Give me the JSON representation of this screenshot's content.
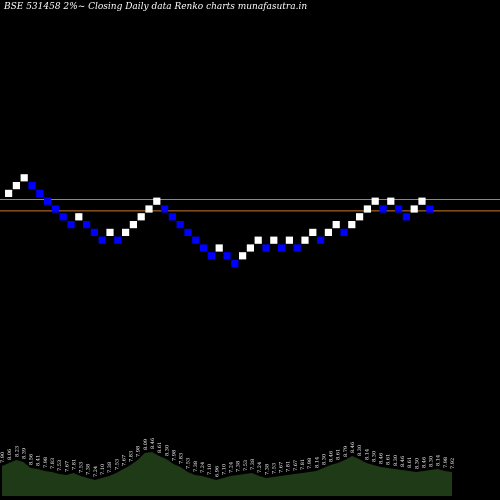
{
  "chart_data": {
    "type": "renko",
    "title": "BSE 531458  2%~  Closing Daily data  Renko  charts munafasutra.in",
    "colors": {
      "background": "#000000",
      "up_brick": "#ffffff",
      "down_brick": "#0000ff",
      "level_line": "#cc7a29",
      "volume_fill": "#1e3a17",
      "volume_label": "#ffffff"
    },
    "levels": [
      15,
      14
    ],
    "bricks": [
      {
        "level": 16,
        "dir": "up"
      },
      {
        "level": 17,
        "dir": "up"
      },
      {
        "level": 18,
        "dir": "up"
      },
      {
        "level": 17,
        "dir": "down"
      },
      {
        "level": 16,
        "dir": "down"
      },
      {
        "level": 15,
        "dir": "down"
      },
      {
        "level": 14,
        "dir": "down"
      },
      {
        "level": 13,
        "dir": "down"
      },
      {
        "level": 12,
        "dir": "down"
      },
      {
        "level": 13,
        "dir": "up"
      },
      {
        "level": 12,
        "dir": "down"
      },
      {
        "level": 11,
        "dir": "down"
      },
      {
        "level": 10,
        "dir": "down"
      },
      {
        "level": 11,
        "dir": "up"
      },
      {
        "level": 10,
        "dir": "down"
      },
      {
        "level": 11,
        "dir": "up"
      },
      {
        "level": 12,
        "dir": "up"
      },
      {
        "level": 13,
        "dir": "up"
      },
      {
        "level": 14,
        "dir": "up"
      },
      {
        "level": 15,
        "dir": "up"
      },
      {
        "level": 14,
        "dir": "down"
      },
      {
        "level": 13,
        "dir": "down"
      },
      {
        "level": 12,
        "dir": "down"
      },
      {
        "level": 11,
        "dir": "down"
      },
      {
        "level": 10,
        "dir": "down"
      },
      {
        "level": 9,
        "dir": "down"
      },
      {
        "level": 8,
        "dir": "down"
      },
      {
        "level": 9,
        "dir": "up"
      },
      {
        "level": 8,
        "dir": "down"
      },
      {
        "level": 7,
        "dir": "down"
      },
      {
        "level": 8,
        "dir": "up"
      },
      {
        "level": 9,
        "dir": "up"
      },
      {
        "level": 10,
        "dir": "up"
      },
      {
        "level": 9,
        "dir": "down"
      },
      {
        "level": 10,
        "dir": "up"
      },
      {
        "level": 9,
        "dir": "down"
      },
      {
        "level": 10,
        "dir": "up"
      },
      {
        "level": 9,
        "dir": "down"
      },
      {
        "level": 10,
        "dir": "up"
      },
      {
        "level": 11,
        "dir": "up"
      },
      {
        "level": 10,
        "dir": "down"
      },
      {
        "level": 11,
        "dir": "up"
      },
      {
        "level": 12,
        "dir": "up"
      },
      {
        "level": 11,
        "dir": "down"
      },
      {
        "level": 12,
        "dir": "up"
      },
      {
        "level": 13,
        "dir": "up"
      },
      {
        "level": 14,
        "dir": "up"
      },
      {
        "level": 15,
        "dir": "up"
      },
      {
        "level": 14,
        "dir": "down"
      },
      {
        "level": 15,
        "dir": "up"
      },
      {
        "level": 14,
        "dir": "down"
      },
      {
        "level": 13,
        "dir": "down"
      },
      {
        "level": 14,
        "dir": "up"
      },
      {
        "level": 15,
        "dir": "up"
      },
      {
        "level": 14,
        "dir": "down"
      }
    ],
    "volume": {
      "values": [
        30,
        33,
        36,
        34,
        28,
        27,
        25,
        24,
        22,
        21,
        23,
        20,
        18,
        16,
        18,
        20,
        23,
        27,
        31,
        36,
        43,
        44,
        40,
        37,
        32,
        29,
        24,
        21,
        20,
        18,
        16,
        18,
        20,
        21,
        22,
        23,
        20,
        18,
        19,
        20,
        21,
        22,
        23,
        24,
        25,
        28,
        31,
        33,
        36,
        40,
        37,
        33,
        31,
        29,
        28,
        27,
        26,
        25,
        24,
        25,
        26,
        27,
        25,
        24
      ],
      "labels": [
        "7.90",
        "8.06",
        "8.23",
        "8.39",
        "8.56",
        "8.41",
        "7.98",
        "7.83",
        "7.53",
        "7.67",
        "7.81",
        "7.53",
        "7.38",
        "7.24",
        "7.10",
        "7.38",
        "7.53",
        "7.67",
        "7.83",
        "7.98",
        "8.09",
        "8.46",
        "8.61",
        "8.30",
        "7.98",
        "7.83",
        "7.53",
        "7.38",
        "7.24",
        "7.10",
        "6.96",
        "7.10",
        "7.24",
        "7.38",
        "7.53",
        "7.38",
        "7.24",
        "7.38",
        "7.53",
        "7.67",
        "7.81",
        "7.67",
        "7.81",
        "7.98",
        "8.14",
        "8.30",
        "8.46",
        "8.61",
        "8.79",
        "8.46",
        "8.30",
        "8.14",
        "8.30",
        "8.46",
        "8.61",
        "8.30",
        "8.46",
        "8.61",
        "8.30",
        "8.46",
        "8.30",
        "8.14",
        "7.98",
        "7.92"
      ]
    }
  }
}
